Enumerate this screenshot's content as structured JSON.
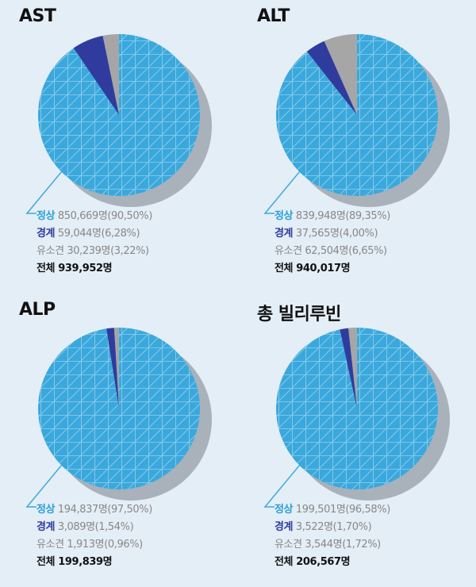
{
  "colors": {
    "normal": "#3aa8dc",
    "warning": "#2f3c9e",
    "abnormal": "#a6a6a6",
    "shadow": "#a9b1bb",
    "background": "#e4eef6"
  },
  "chart_data": [
    {
      "type": "pie",
      "title": "AST",
      "categories": [
        "정상",
        "경계",
        "유소견"
      ],
      "values": [
        90.5,
        6.28,
        3.22
      ],
      "counts": [
        "850,669명",
        "59,044명",
        "30,239명"
      ],
      "percent_labels": [
        "(90,50%)",
        "(6,28%)",
        "(3,22%)"
      ],
      "total_label": "전체",
      "total_value": "939,952명"
    },
    {
      "type": "pie",
      "title": "ALT",
      "categories": [
        "정상",
        "경계",
        "유소견"
      ],
      "values": [
        89.35,
        4.0,
        6.65
      ],
      "counts": [
        "839,948명",
        "37,565명",
        "62,504명"
      ],
      "percent_labels": [
        "(89,35%)",
        "(4,00%)",
        "(6,65%)"
      ],
      "total_label": "전체",
      "total_value": "940,017명"
    },
    {
      "type": "pie",
      "title": "ALP",
      "categories": [
        "정상",
        "경계",
        "유소견"
      ],
      "values": [
        97.5,
        1.54,
        0.96
      ],
      "counts": [
        "194,837명",
        "3,089명",
        "1,913명"
      ],
      "percent_labels": [
        "(97,50%)",
        "(1,54%)",
        "(0,96%)"
      ],
      "total_label": "전체",
      "total_value": "199,839명"
    },
    {
      "type": "pie",
      "title": "총 빌리루빈",
      "categories": [
        "정상",
        "경계",
        "유소견"
      ],
      "values": [
        96.58,
        1.7,
        1.72
      ],
      "counts": [
        "199,501명",
        "3,522명",
        "3,544명"
      ],
      "percent_labels": [
        "(96,58%)",
        "(1,70%)",
        "(1,72%)"
      ],
      "total_label": "전체",
      "total_value": "206,567명"
    }
  ]
}
